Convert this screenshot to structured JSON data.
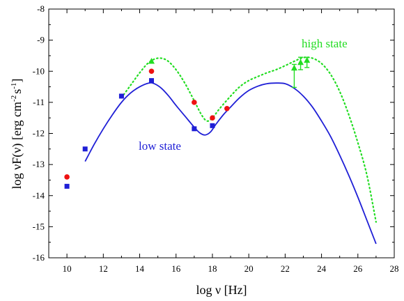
{
  "chart_data": {
    "type": "scatter",
    "title": "",
    "xlabel": "log ν [Hz]",
    "ylabel_main": "log νF(ν) [erg cm",
    "ylabel_sup1": "-2",
    "ylabel_mid": "s",
    "ylabel_sup2": "-1",
    "ylabel_end": "]",
    "xlim": [
      9,
      28
    ],
    "ylim": [
      -16,
      -8
    ],
    "xticks": [
      10,
      12,
      14,
      16,
      18,
      20,
      22,
      24,
      26,
      28
    ],
    "yticks": [
      -16,
      -15,
      -14,
      -13,
      -12,
      -11,
      -10,
      -9,
      -8
    ],
    "annotations": {
      "high_state": "high state",
      "low_state": "low state"
    },
    "colors": {
      "low": "#1f1fd6",
      "red": "#ee1111",
      "high": "#22dd22"
    },
    "series": [
      {
        "kind": "line",
        "style": "solid",
        "color": "#1f1fd6",
        "points": [
          [
            11.0,
            -12.9
          ],
          [
            11.5,
            -12.35
          ],
          [
            12.0,
            -11.85
          ],
          [
            12.5,
            -11.4
          ],
          [
            13.0,
            -11.0
          ],
          [
            13.5,
            -10.7
          ],
          [
            14.0,
            -10.5
          ],
          [
            14.5,
            -10.38
          ],
          [
            14.8,
            -10.4
          ],
          [
            15.2,
            -10.55
          ],
          [
            15.6,
            -10.8
          ],
          [
            16.0,
            -11.1
          ],
          [
            16.5,
            -11.45
          ],
          [
            17.0,
            -11.8
          ],
          [
            17.3,
            -11.98
          ],
          [
            17.6,
            -12.05
          ],
          [
            17.9,
            -11.95
          ],
          [
            18.2,
            -11.7
          ],
          [
            18.6,
            -11.4
          ],
          [
            19.0,
            -11.15
          ],
          [
            19.5,
            -10.85
          ],
          [
            20.0,
            -10.62
          ],
          [
            20.5,
            -10.48
          ],
          [
            21.0,
            -10.4
          ],
          [
            21.5,
            -10.38
          ],
          [
            22.0,
            -10.4
          ],
          [
            22.5,
            -10.55
          ],
          [
            23.0,
            -10.8
          ],
          [
            23.5,
            -11.15
          ],
          [
            24.0,
            -11.6
          ],
          [
            24.5,
            -12.1
          ],
          [
            25.0,
            -12.7
          ],
          [
            25.5,
            -13.35
          ],
          [
            26.0,
            -14.05
          ],
          [
            26.5,
            -14.8
          ],
          [
            27.0,
            -15.55
          ]
        ]
      },
      {
        "kind": "line",
        "style": "dotted",
        "color": "#22dd22",
        "points": [
          [
            13.0,
            -10.85
          ],
          [
            13.5,
            -10.45
          ],
          [
            14.0,
            -10.05
          ],
          [
            14.5,
            -9.72
          ],
          [
            15.0,
            -9.58
          ],
          [
            15.5,
            -9.65
          ],
          [
            16.0,
            -9.95
          ],
          [
            16.5,
            -10.4
          ],
          [
            17.0,
            -10.95
          ],
          [
            17.4,
            -11.4
          ],
          [
            17.7,
            -11.6
          ],
          [
            18.0,
            -11.5
          ],
          [
            18.4,
            -11.2
          ],
          [
            19.0,
            -10.8
          ],
          [
            19.5,
            -10.5
          ],
          [
            20.0,
            -10.3
          ],
          [
            20.5,
            -10.17
          ],
          [
            21.0,
            -10.05
          ],
          [
            21.5,
            -9.95
          ],
          [
            22.0,
            -9.82
          ],
          [
            22.5,
            -9.68
          ],
          [
            23.0,
            -9.56
          ],
          [
            23.5,
            -9.58
          ],
          [
            24.0,
            -9.75
          ],
          [
            24.5,
            -10.1
          ],
          [
            25.0,
            -10.65
          ],
          [
            25.5,
            -11.4
          ],
          [
            26.0,
            -12.3
          ],
          [
            26.5,
            -13.35
          ],
          [
            27.0,
            -14.85
          ]
        ]
      },
      {
        "kind": "points",
        "marker": "square",
        "color": "#1f1fd6",
        "points": [
          [
            10.0,
            -13.7
          ],
          [
            11.0,
            -12.5
          ],
          [
            13.0,
            -10.8
          ],
          [
            14.65,
            -10.3
          ],
          [
            17.0,
            -11.85
          ],
          [
            18.0,
            -11.75
          ]
        ]
      },
      {
        "kind": "points",
        "marker": "circle",
        "color": "#ee1111",
        "points": [
          [
            10.0,
            -13.4
          ],
          [
            14.65,
            -10.0
          ],
          [
            17.0,
            -11.0
          ],
          [
            18.0,
            -11.5
          ],
          [
            18.8,
            -11.2
          ]
        ]
      },
      {
        "kind": "points",
        "marker": "triangle",
        "color": "#22dd22",
        "points": [
          [
            14.65,
            -9.68
          ],
          [
            22.5,
            -9.9
          ],
          [
            22.85,
            -9.72
          ],
          [
            23.2,
            -9.65
          ]
        ]
      },
      {
        "kind": "errorbars",
        "color": "#22dd22",
        "points": [
          [
            22.5,
            -10.52,
            -9.78
          ],
          [
            22.85,
            -9.95,
            -9.55
          ],
          [
            23.2,
            -9.88,
            -9.55
          ]
        ]
      }
    ]
  }
}
